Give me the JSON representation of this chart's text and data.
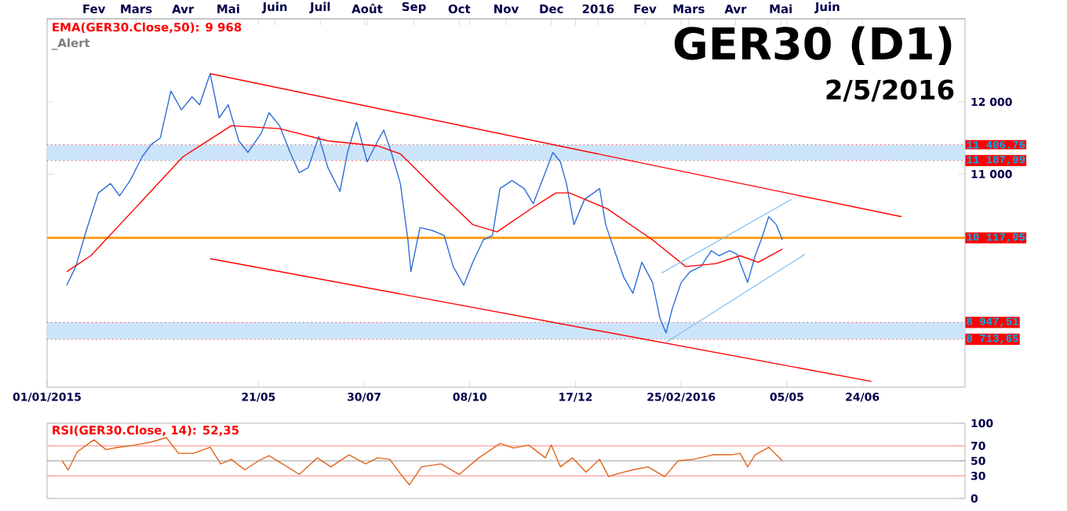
{
  "chart_data": [
    {
      "type": "line",
      "title": "GER30 (D1)",
      "subtitle": "2/5/2016",
      "annotations": [
        "EMA(GER30.Close,50): 9 968",
        "_Alert"
      ],
      "xlim": [
        "2015-01-01",
        "2016-08-31"
      ],
      "ylim": [
        8050,
        13150
      ],
      "xticks": [
        {
          "value": "2015-01-01",
          "label": "01/01/2015"
        },
        {
          "value": "2015-05-21",
          "label": "21/05"
        },
        {
          "value": "2015-07-30",
          "label": "30/07"
        },
        {
          "value": "2015-10-08",
          "label": "08/10"
        },
        {
          "value": "2015-12-17",
          "label": "17/12"
        },
        {
          "value": "2016-02-25",
          "label": "25/02/2016"
        },
        {
          "value": "2016-05-05",
          "label": "05/05"
        },
        {
          "value": "2016-06-24",
          "label": "24/06"
        }
      ],
      "x2lim": [
        "2015-01-01",
        "2016-08-31"
      ],
      "x2ticks": [
        {
          "value": "2015-02-01",
          "label": "Fev"
        },
        {
          "value": "2015-03-01",
          "label": "Mars"
        },
        {
          "value": "2015-04-01",
          "label": "Avr"
        },
        {
          "value": "2015-05-01",
          "label": "Mai"
        },
        {
          "value": "2015-06-01",
          "label": "Juin"
        },
        {
          "value": "2015-07-01",
          "label": "Juil"
        },
        {
          "value": "2015-08-01",
          "label": "Août"
        },
        {
          "value": "2015-09-01",
          "label": "Sep"
        },
        {
          "value": "2015-10-01",
          "label": "Oct"
        },
        {
          "value": "2015-11-01",
          "label": "Nov"
        },
        {
          "value": "2015-12-01",
          "label": "Dec"
        },
        {
          "value": "2016-01-01",
          "label": "2016"
        },
        {
          "value": "2016-02-01",
          "label": "Fev"
        },
        {
          "value": "2016-03-01",
          "label": "Mars"
        },
        {
          "value": "2016-04-01",
          "label": "Avr"
        },
        {
          "value": "2016-05-01",
          "label": "Mai"
        },
        {
          "value": "2016-06-01",
          "label": "Juin"
        }
      ],
      "yticks": [
        {
          "value": 11000,
          "label": "11 000"
        },
        {
          "value": 12000,
          "label": "12 000"
        }
      ],
      "bands": [
        {
          "axis": "y",
          "from": 11187.99,
          "to": 11406.76,
          "color": "#cce4fa"
        },
        {
          "axis": "y",
          "from": 8713.65,
          "to": 8947.51,
          "color": "#cce4fa"
        }
      ],
      "ref_lines": [
        {
          "axis": "y",
          "value": 11406.76,
          "label": "11 406.76",
          "color": "#ff5050",
          "line_style": "dotted"
        },
        {
          "axis": "y",
          "value": 11187.99,
          "label": "11 187,99",
          "color": "#ff5050",
          "line_style": "dotted"
        },
        {
          "axis": "y",
          "value": 10117.05,
          "label": "10 117,05",
          "color": "#ffa020",
          "line_style": "solid"
        },
        {
          "axis": "y",
          "value": 8947.51,
          "label": "8 947,51",
          "color": "#ff5050",
          "line_style": "dotted"
        },
        {
          "axis": "y",
          "value": 8713.65,
          "label": "8 713,65",
          "color": "#ff5050",
          "line_style": "dotted"
        }
      ],
      "series": [
        {
          "color": "#2f6fd6",
          "x": [
            "2015-01-14",
            "2015-01-20",
            "2015-01-27",
            "2015-02-04",
            "2015-02-12",
            "2015-02-18",
            "2015-02-25",
            "2015-03-05",
            "2015-03-11",
            "2015-03-17",
            "2015-03-24",
            "2015-03-31",
            "2015-04-07",
            "2015-04-12",
            "2015-04-19",
            "2015-04-25",
            "2015-05-01",
            "2015-05-08",
            "2015-05-14",
            "2015-05-23",
            "2015-05-28",
            "2015-06-04",
            "2015-06-11",
            "2015-06-17",
            "2015-06-23",
            "2015-06-30",
            "2015-07-06",
            "2015-07-14",
            "2015-07-19",
            "2015-07-25",
            "2015-08-01",
            "2015-08-08",
            "2015-08-12",
            "2015-08-17",
            "2015-08-23",
            "2015-08-28",
            "2015-08-30",
            "2015-09-05",
            "2015-09-13",
            "2015-09-21",
            "2015-09-27",
            "2015-10-04",
            "2015-10-10",
            "2015-10-17",
            "2015-10-23",
            "2015-10-28",
            "2015-11-05",
            "2015-11-13",
            "2015-11-19",
            "2015-11-27",
            "2015-12-02",
            "2015-12-07",
            "2015-12-11",
            "2015-12-16",
            "2015-12-23",
            "2016-01-02",
            "2016-01-06",
            "2016-01-13",
            "2016-01-18",
            "2016-01-24",
            "2016-01-30",
            "2016-02-06",
            "2016-02-11",
            "2016-02-15",
            "2016-02-19",
            "2016-02-25",
            "2016-03-02",
            "2016-03-09",
            "2016-03-16",
            "2016-03-21",
            "2016-03-28",
            "2016-04-02",
            "2016-04-09",
            "2016-04-14",
            "2016-04-18",
            "2016-04-23",
            "2016-04-28",
            "2016-05-02"
          ],
          "values": [
            9460,
            9720,
            10220,
            10740,
            10870,
            10700,
            10910,
            11240,
            11410,
            11500,
            12150,
            11890,
            12070,
            11960,
            12390,
            11780,
            11960,
            11460,
            11300,
            11570,
            11850,
            11670,
            11300,
            11020,
            11090,
            11520,
            11090,
            10760,
            11300,
            11720,
            11170,
            11460,
            11610,
            11300,
            10870,
            10090,
            9650,
            10260,
            10220,
            10150,
            9720,
            9460,
            9780,
            10090,
            10150,
            10800,
            10910,
            10800,
            10590,
            11020,
            11300,
            11170,
            10870,
            10300,
            10650,
            10800,
            10300,
            9870,
            9570,
            9350,
            9780,
            9500,
            9000,
            8800,
            9130,
            9500,
            9650,
            9720,
            9940,
            9870,
            9940,
            9890,
            9500,
            9870,
            10090,
            10410,
            10300,
            10090
          ]
        },
        {
          "color": "#ff0000",
          "x": [
            "2015-01-14",
            "2015-01-30",
            "2015-02-28",
            "2015-04-01",
            "2015-05-03",
            "2015-06-04",
            "2015-07-06",
            "2015-08-08",
            "2015-08-23",
            "2015-09-18",
            "2015-10-10",
            "2015-10-26",
            "2015-11-19",
            "2015-12-04",
            "2015-12-13",
            "2016-01-07",
            "2016-02-06",
            "2016-02-28",
            "2016-03-19",
            "2016-04-04",
            "2016-04-16",
            "2016-05-02"
          ],
          "values": [
            9650,
            9870,
            10520,
            11240,
            11670,
            11630,
            11460,
            11390,
            11280,
            10740,
            10300,
            10200,
            10540,
            10740,
            10740,
            10520,
            10090,
            9720,
            9760,
            9870,
            9780,
            9960
          ]
        },
        {
          "color": "#ff0000",
          "x": [
            "2015-04-19",
            "2016-07-20"
          ],
          "values": [
            12390,
            10410
          ]
        },
        {
          "color": "#ff0000",
          "x": [
            "2015-04-19",
            "2016-06-30"
          ],
          "values": [
            9830,
            8130
          ]
        },
        {
          "color": "#8ec5f0",
          "x": [
            "2016-02-12",
            "2016-05-08"
          ],
          "values": [
            9630,
            10650
          ]
        },
        {
          "color": "#8ec5f0",
          "x": [
            "2016-02-15",
            "2016-05-17"
          ],
          "values": [
            8670,
            9890
          ]
        }
      ]
    },
    {
      "type": "line",
      "annotations": [
        "RSI(GER30.Close, 14): 52,35"
      ],
      "tick_labels": "y",
      "xlim": [
        "2015-01-01",
        "2016-08-31"
      ],
      "ylim": [
        0,
        100
      ],
      "yticks": [
        0,
        30,
        50,
        70,
        100
      ],
      "ref_lines": [
        {
          "axis": "y",
          "value": 70,
          "color": "#ff9999"
        },
        {
          "axis": "y",
          "value": 50,
          "color": "#999999"
        },
        {
          "axis": "y",
          "value": 30,
          "color": "#ff9999"
        }
      ],
      "series": [
        {
          "color": "#e0651a",
          "x": [
            "2015-01-11",
            "2015-01-15",
            "2015-01-21",
            "2015-02-01",
            "2015-02-09",
            "2015-02-17",
            "2015-02-28",
            "2015-03-11",
            "2015-03-21",
            "2015-03-29",
            "2015-04-08",
            "2015-04-19",
            "2015-04-26",
            "2015-05-03",
            "2015-05-12",
            "2015-05-21",
            "2015-05-28",
            "2015-06-06",
            "2015-06-17",
            "2015-06-29",
            "2015-07-08",
            "2015-07-20",
            "2015-07-31",
            "2015-08-08",
            "2015-08-16",
            "2015-08-23",
            "2015-08-29",
            "2015-09-06",
            "2015-09-19",
            "2015-10-01",
            "2015-10-14",
            "2015-10-28",
            "2015-11-06",
            "2015-11-16",
            "2015-11-27",
            "2015-12-01",
            "2015-12-07",
            "2015-12-15",
            "2015-12-24",
            "2016-01-02",
            "2016-01-08",
            "2016-01-14",
            "2016-01-24",
            "2016-02-03",
            "2016-02-14",
            "2016-02-23",
            "2016-03-04",
            "2016-03-17",
            "2016-03-29",
            "2016-04-04",
            "2016-04-09",
            "2016-04-14",
            "2016-04-23",
            "2016-05-02"
          ],
          "values": [
            50,
            38,
            62,
            78,
            65,
            68,
            71,
            75,
            81,
            60,
            60,
            68,
            46,
            52,
            38,
            50,
            57,
            46,
            32,
            54,
            42,
            58,
            46,
            54,
            52,
            33,
            18,
            42,
            46,
            32,
            54,
            73,
            67,
            71,
            54,
            71,
            42,
            54,
            35,
            52,
            29,
            33,
            38,
            42,
            29,
            50,
            52,
            58,
            58,
            60,
            42,
            58,
            68,
            50
          ]
        }
      ]
    }
  ]
}
